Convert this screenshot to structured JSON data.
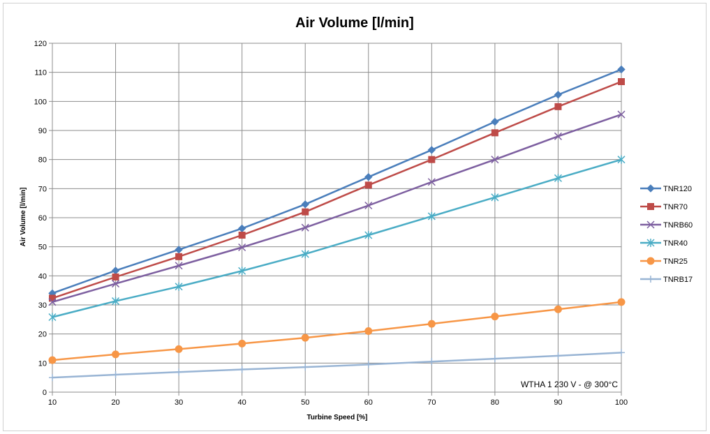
{
  "chart_data": {
    "type": "line",
    "title": "Air Volume [l/min]",
    "xlabel": "Turbine Speed [%]",
    "ylabel": "Air Volume [l/min]",
    "x": [
      10,
      20,
      30,
      40,
      50,
      60,
      70,
      80,
      90,
      100
    ],
    "xlim": [
      10,
      100
    ],
    "ylim": [
      0,
      120
    ],
    "x_ticks": [
      "10",
      "20",
      "30",
      "40",
      "50",
      "60",
      "70",
      "80",
      "90",
      "100"
    ],
    "y_ticks": [
      "0",
      "10",
      "20",
      "30",
      "40",
      "50",
      "60",
      "70",
      "80",
      "90",
      "100",
      "110",
      "120"
    ],
    "grid": true,
    "legend_position": "right",
    "annotation": "WTHA 1 230 V - @ 300°C",
    "series": [
      {
        "name": "TNR120",
        "color": "#4a7ebb",
        "marker": "diamond",
        "values": [
          34,
          41.8,
          49,
          56.3,
          64.6,
          74,
          83.3,
          93,
          102.3,
          111
        ]
      },
      {
        "name": "TNR70",
        "color": "#be4b48",
        "marker": "square",
        "values": [
          32.3,
          39.6,
          46.6,
          54,
          62,
          71.2,
          80,
          89.2,
          98.2,
          106.8
        ]
      },
      {
        "name": "TNRB60",
        "color": "#7d5fa0",
        "marker": "x",
        "values": [
          31,
          37.3,
          43.5,
          49.8,
          56.6,
          64.2,
          72.3,
          80,
          88,
          95.5
        ]
      },
      {
        "name": "TNR40",
        "color": "#4aacc5",
        "marker": "star",
        "values": [
          25.8,
          31.3,
          36.3,
          41.7,
          47.5,
          54,
          60.5,
          67,
          73.6,
          80
        ]
      },
      {
        "name": "TNR25",
        "color": "#f79646",
        "marker": "circle",
        "values": [
          11,
          13,
          14.8,
          16.7,
          18.7,
          21,
          23.5,
          26,
          28.5,
          31
        ]
      },
      {
        "name": "TNRB17",
        "color": "#98b4d4",
        "marker": "plus",
        "values": [
          5,
          6,
          6.9,
          7.8,
          8.6,
          9.5,
          10.5,
          11.5,
          12.5,
          13.6
        ]
      }
    ]
  }
}
